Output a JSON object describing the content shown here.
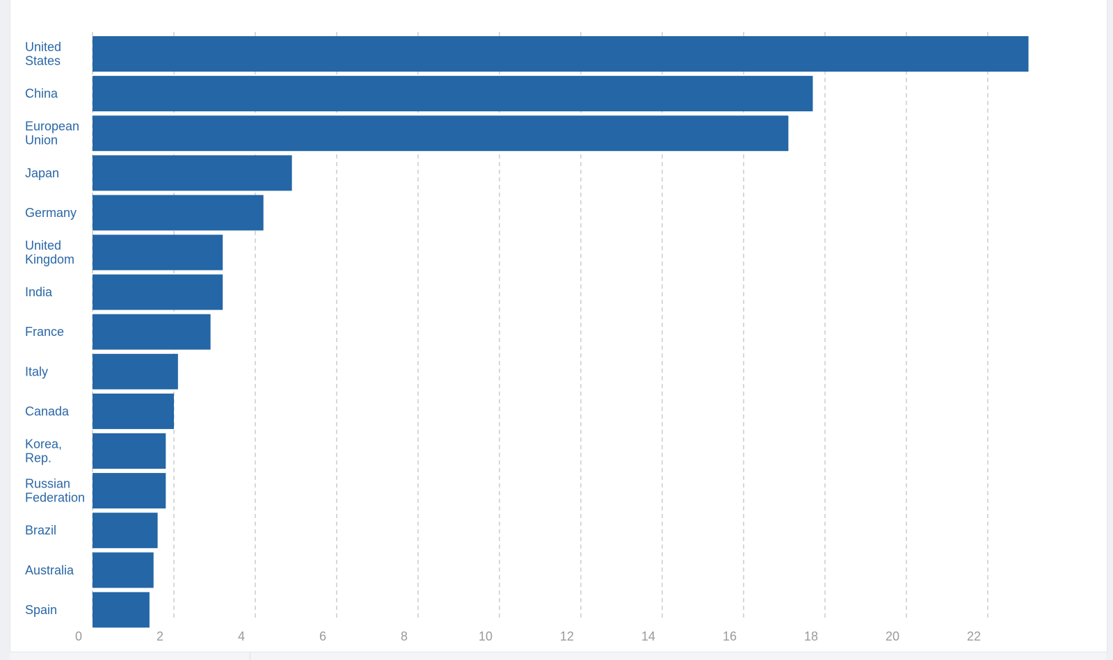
{
  "chart_data": {
    "type": "bar",
    "orientation": "horizontal",
    "title": "",
    "xlabel": "",
    "ylabel": "",
    "categories": [
      "United States",
      "China",
      "European Union",
      "Japan",
      "Germany",
      "United Kingdom",
      "India",
      "France",
      "Italy",
      "Canada",
      "Korea, Rep.",
      "Russian Federation",
      "Brazil",
      "Australia",
      "Spain"
    ],
    "category_lines": [
      [
        "United",
        "States"
      ],
      [
        "China"
      ],
      [
        "European",
        "Union"
      ],
      [
        "Japan"
      ],
      [
        "Germany"
      ],
      [
        "United",
        "Kingdom"
      ],
      [
        "India"
      ],
      [
        "France"
      ],
      [
        "Italy"
      ],
      [
        "Canada"
      ],
      [
        "Korea,",
        "Rep."
      ],
      [
        "Russian",
        "Federation"
      ],
      [
        "Brazil"
      ],
      [
        "Australia"
      ],
      [
        "Spain"
      ]
    ],
    "values": [
      23.0,
      17.7,
      17.1,
      4.9,
      4.2,
      3.2,
      3.2,
      2.9,
      2.1,
      2.0,
      1.8,
      1.8,
      1.6,
      1.5,
      1.4
    ],
    "xlim": [
      0,
      24
    ],
    "xticks": [
      "0",
      "2",
      "4",
      "6",
      "8",
      "10",
      "12",
      "14",
      "16",
      "18",
      "20",
      "22"
    ],
    "grid": "vertical-dashed",
    "legend": "none",
    "colors": {
      "bar": "#2466a6",
      "label": "#2a67a6",
      "grid": "#bdbdbd",
      "tick": "#9a9a9a"
    }
  }
}
